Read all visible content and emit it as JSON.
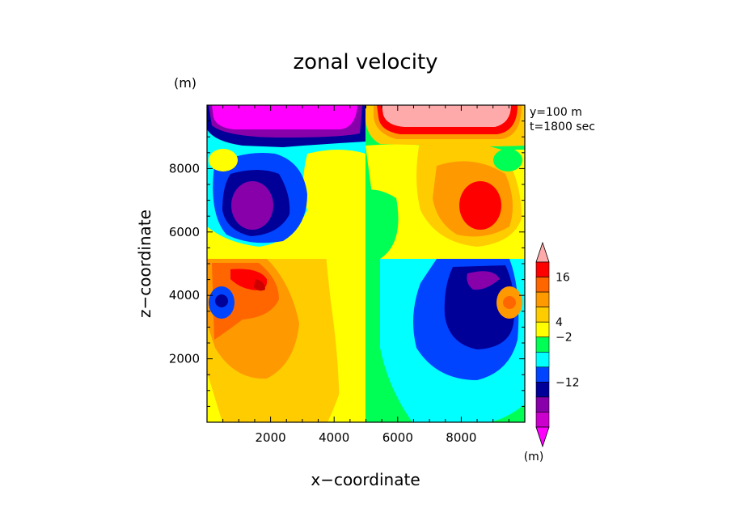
{
  "chart_data": {
    "type": "heatmap",
    "title": "zonal velocity",
    "xlabel": "x−coordinate",
    "ylabel": "z−coordinate",
    "x_unit": "(m)",
    "y_unit": "(m)",
    "annotations": [
      "y=100 m",
      "t=1800 sec"
    ],
    "xlim": [
      0,
      10000
    ],
    "ylim": [
      0,
      10000
    ],
    "x_ticks": [
      2000,
      4000,
      6000,
      8000
    ],
    "y_ticks": [
      2000,
      4000,
      6000,
      8000
    ],
    "x_tick_labels": [
      "2000",
      "4000",
      "6000",
      "8000"
    ],
    "y_tick_labels": [
      "2000",
      "4000",
      "6000",
      "8000"
    ],
    "colorbar": {
      "unit": "(m)",
      "labels": [
        {
          "text": "16",
          "level": 16
        },
        {
          "text": "4",
          "level": 4
        },
        {
          "text": "−2",
          "level": -2
        },
        {
          "text": "−12",
          "level": -12
        }
      ],
      "colors": [
        "#ff00ff",
        "#cc00cc",
        "#8800aa",
        "#000099",
        "#0044ff",
        "#00ffff",
        "#00ff55",
        "#ffff00",
        "#ffcc00",
        "#ff9900",
        "#ff6600",
        "#ff0000",
        "#ffaaaa"
      ]
    },
    "features": [
      {
        "x": 1200,
        "z": 9600,
        "value": -18,
        "width": 1800,
        "height": 800
      },
      {
        "x": 8000,
        "z": 9600,
        "value": 18,
        "width": 1800,
        "height": 800
      },
      {
        "x": 1600,
        "z": 6800,
        "value": -14,
        "width": 1100,
        "height": 1700
      },
      {
        "x": 8400,
        "z": 6800,
        "value": 14,
        "width": 1100,
        "height": 1700
      },
      {
        "x": 1600,
        "z": 4000,
        "value": 10,
        "width": 1300,
        "height": 1500
      },
      {
        "x": 8400,
        "z": 4000,
        "value": -10,
        "width": 1300,
        "height": 1500
      },
      {
        "x": 500,
        "z": 3900,
        "value": -8,
        "width": 350,
        "height": 400
      },
      {
        "x": 9500,
        "z": 3900,
        "value": 8,
        "width": 350,
        "height": 400
      },
      {
        "x": 600,
        "z": 8100,
        "value": 2,
        "width": 600,
        "height": 500
      },
      {
        "x": 9400,
        "z": 8100,
        "value": -2,
        "width": 600,
        "height": 500
      }
    ]
  }
}
